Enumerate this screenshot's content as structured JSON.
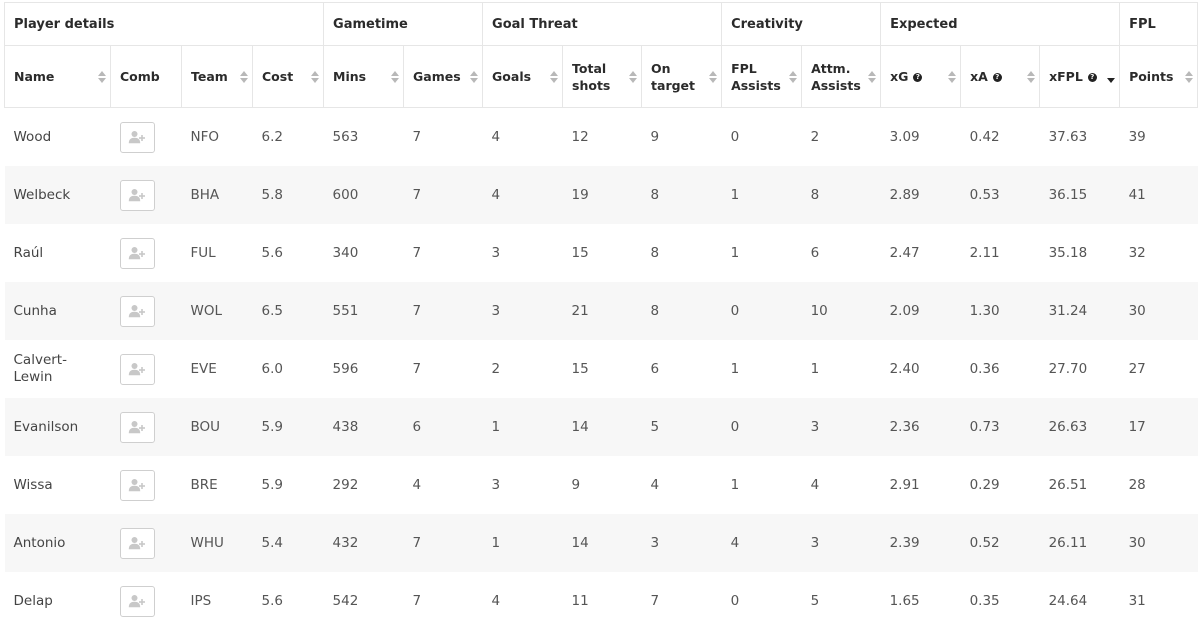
{
  "groups": {
    "player_details": "Player details",
    "gametime": "Gametime",
    "goal_threat": "Goal Threat",
    "creativity": "Creativity",
    "expected": "Expected",
    "fpl": "FPL"
  },
  "columns": {
    "name": "Name",
    "comb": "Comb",
    "team": "Team",
    "cost": "Cost",
    "mins": "Mins",
    "games": "Games",
    "goals": "Goals",
    "total_shots_1": "Total",
    "total_shots_2": "shots",
    "on_target_1": "On",
    "on_target_2": "target",
    "fpl_assists_1": "FPL",
    "fpl_assists_2": "Assists",
    "attm_assists_1": "Attm.",
    "attm_assists_2": "Assists",
    "xg": "xG",
    "xa": "xA",
    "xfpl": "xFPL",
    "points": "Points",
    "help_glyph": "?"
  },
  "icons": {
    "comb_button": "add-user-icon",
    "sort": "sort-arrows-icon",
    "help": "help-circle-icon"
  },
  "sort": {
    "active_column": "xFPL",
    "direction": "descending"
  },
  "rows": [
    {
      "name": "Wood",
      "team": "NFO",
      "cost": "6.2",
      "mins": "563",
      "games": "7",
      "goals": "4",
      "shots": "12",
      "on_target": "9",
      "fpl_assists": "0",
      "attm_assists": "2",
      "xg": "3.09",
      "xa": "0.42",
      "xfpl": "37.63",
      "points": "39"
    },
    {
      "name": "Welbeck",
      "team": "BHA",
      "cost": "5.8",
      "mins": "600",
      "games": "7",
      "goals": "4",
      "shots": "19",
      "on_target": "8",
      "fpl_assists": "1",
      "attm_assists": "8",
      "xg": "2.89",
      "xa": "0.53",
      "xfpl": "36.15",
      "points": "41"
    },
    {
      "name": "Raúl",
      "team": "FUL",
      "cost": "5.6",
      "mins": "340",
      "games": "7",
      "goals": "3",
      "shots": "15",
      "on_target": "8",
      "fpl_assists": "1",
      "attm_assists": "6",
      "xg": "2.47",
      "xa": "2.11",
      "xfpl": "35.18",
      "points": "32"
    },
    {
      "name": "Cunha",
      "team": "WOL",
      "cost": "6.5",
      "mins": "551",
      "games": "7",
      "goals": "3",
      "shots": "21",
      "on_target": "8",
      "fpl_assists": "0",
      "attm_assists": "10",
      "xg": "2.09",
      "xa": "1.30",
      "xfpl": "31.24",
      "points": "30"
    },
    {
      "name": "Calvert-Lewin",
      "name_line1": "Calvert-",
      "name_line2": "Lewin",
      "team": "EVE",
      "cost": "6.0",
      "mins": "596",
      "games": "7",
      "goals": "2",
      "shots": "15",
      "on_target": "6",
      "fpl_assists": "1",
      "attm_assists": "1",
      "xg": "2.40",
      "xa": "0.36",
      "xfpl": "27.70",
      "points": "27"
    },
    {
      "name": "Evanilson",
      "team": "BOU",
      "cost": "5.9",
      "mins": "438",
      "games": "6",
      "goals": "1",
      "shots": "14",
      "on_target": "5",
      "fpl_assists": "0",
      "attm_assists": "3",
      "xg": "2.36",
      "xa": "0.73",
      "xfpl": "26.63",
      "points": "17"
    },
    {
      "name": "Wissa",
      "team": "BRE",
      "cost": "5.9",
      "mins": "292",
      "games": "4",
      "goals": "3",
      "shots": "9",
      "on_target": "4",
      "fpl_assists": "1",
      "attm_assists": "4",
      "xg": "2.91",
      "xa": "0.29",
      "xfpl": "26.51",
      "points": "28"
    },
    {
      "name": "Antonio",
      "team": "WHU",
      "cost": "5.4",
      "mins": "432",
      "games": "7",
      "goals": "1",
      "shots": "14",
      "on_target": "3",
      "fpl_assists": "4",
      "attm_assists": "3",
      "xg": "2.39",
      "xa": "0.52",
      "xfpl": "26.11",
      "points": "30"
    },
    {
      "name": "Delap",
      "team": "IPS",
      "cost": "5.6",
      "mins": "542",
      "games": "7",
      "goals": "4",
      "shots": "11",
      "on_target": "7",
      "fpl_assists": "0",
      "attm_assists": "5",
      "xg": "1.65",
      "xa": "0.35",
      "xfpl": "24.64",
      "points": "31"
    }
  ]
}
